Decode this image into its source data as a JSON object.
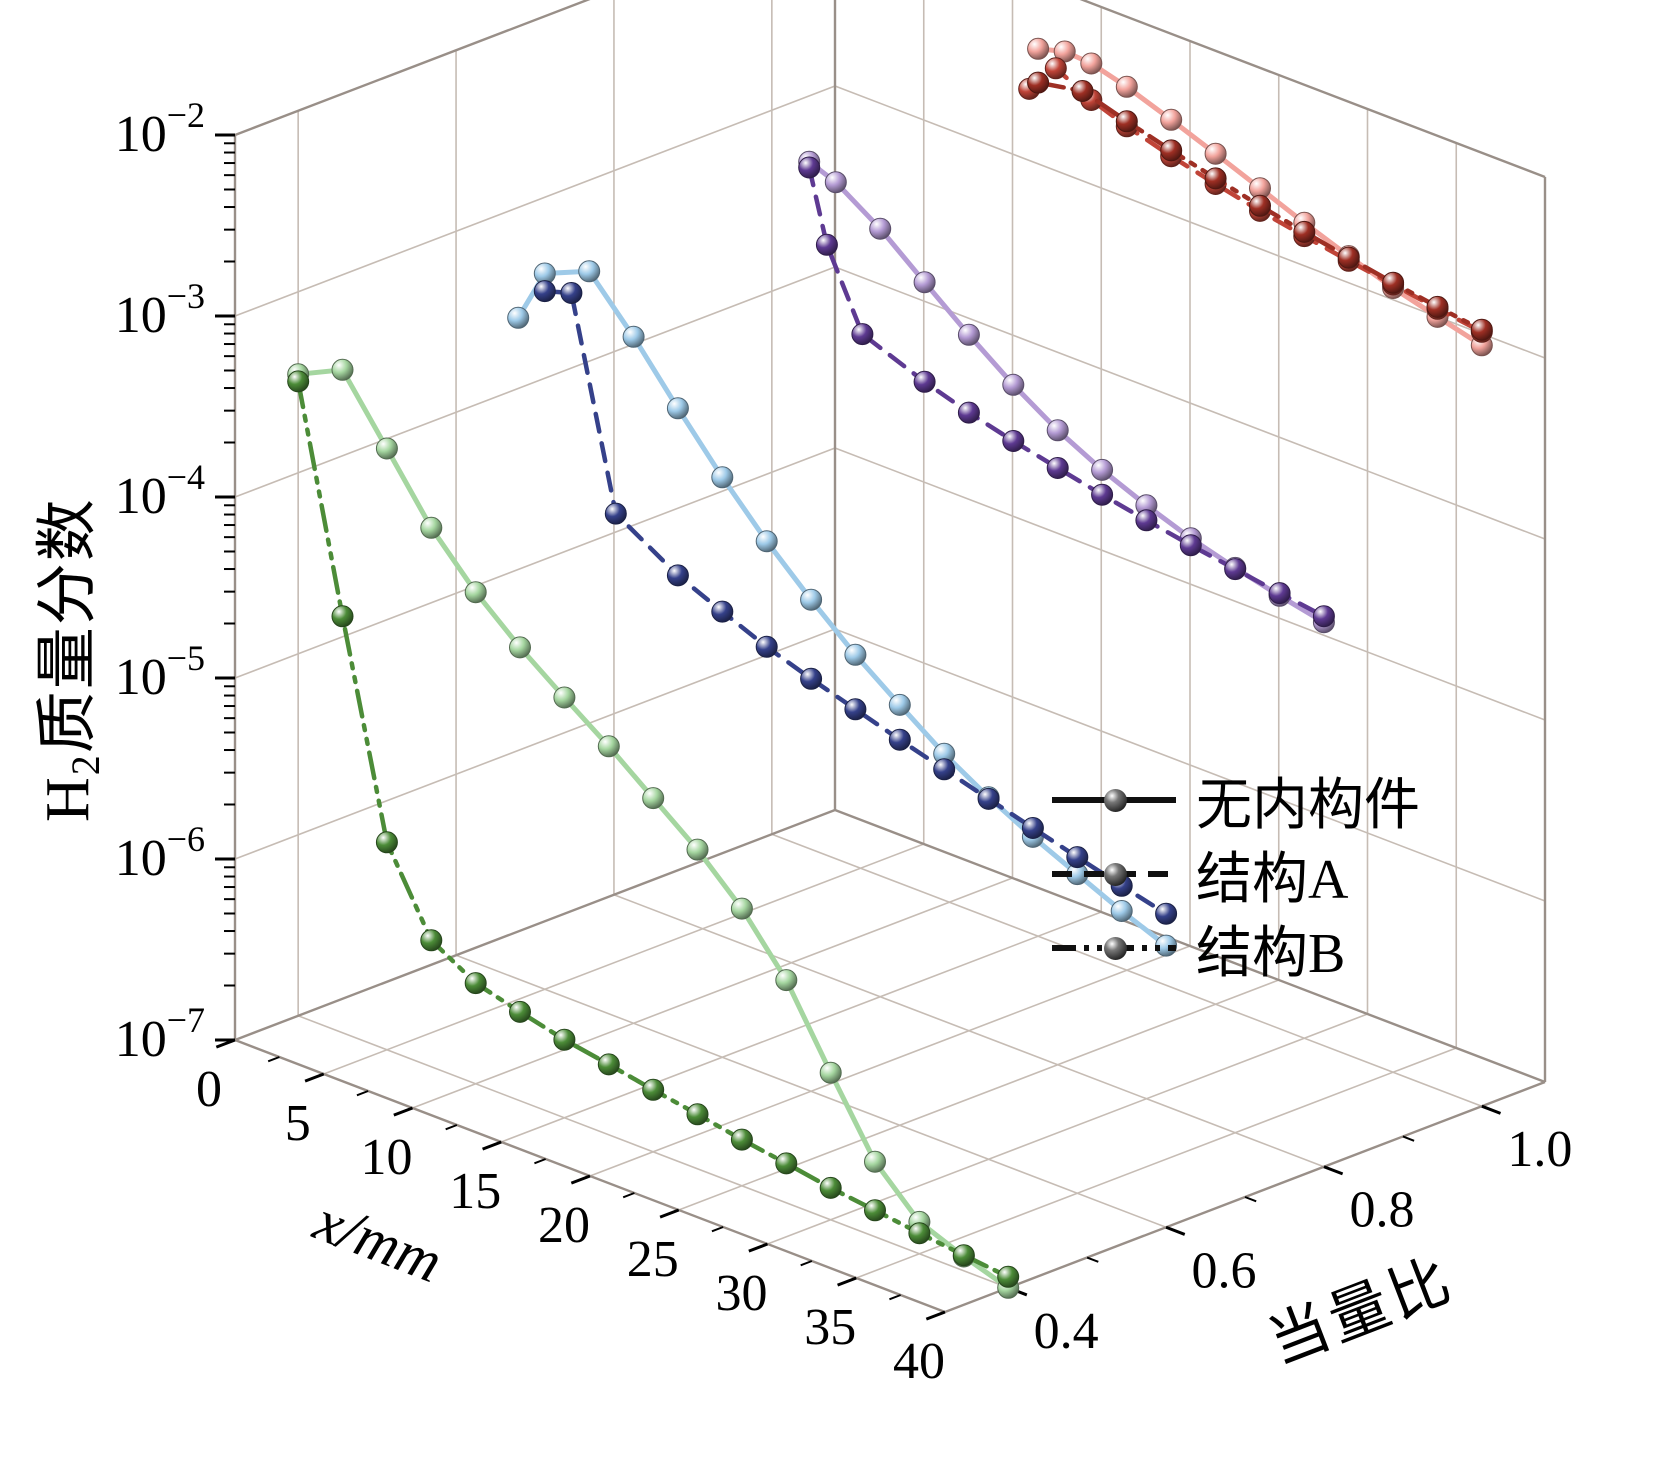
{
  "figure": {
    "background": "#ffffff",
    "zlabel_h": "H",
    "zlabel_sub": "2",
    "zlabel_rest": "质量分数",
    "xlabel": "x/mm",
    "ylabel": "当量比",
    "colors": {
      "grid": "#c6bcb4",
      "frame": "#998f88",
      "text": "#000000"
    }
  },
  "legend": {
    "items": [
      {
        "label": "无内构件",
        "style": "solid"
      },
      {
        "label": "结构A",
        "style": "dashed"
      },
      {
        "label": "结构B",
        "style": "dashdot"
      }
    ]
  },
  "chart_data": {
    "type": "line",
    "projection": "3d",
    "title": "",
    "xlabel": "x/mm",
    "ylabel": "当量比",
    "zlabel": "H2质量分数",
    "grid": true,
    "x_range": [
      0,
      40
    ],
    "y_range": [
      0.32,
      1.08
    ],
    "z_range_exp": [
      -7,
      -2
    ],
    "x_ticks": [
      0,
      5,
      10,
      15,
      20,
      25,
      30,
      35,
      40
    ],
    "x_minor_ticks": [
      2.5,
      7.5,
      12.5,
      17.5,
      22.5,
      27.5,
      32.5,
      37.5
    ],
    "y_ticks": [
      0.4,
      0.6,
      0.8,
      1.0
    ],
    "y_minor_ticks": [
      0.5,
      0.7,
      0.9
    ],
    "z_ticks_exp": [
      -7,
      -6,
      -5,
      -4,
      -3,
      -2
    ],
    "series": [
      {
        "name": "无内构件",
        "equivalence_ratio": 0.4,
        "style": "solid",
        "color": "#a5d6a0",
        "x": [
          0,
          2.5,
          5,
          7.5,
          10,
          12.5,
          15,
          17.5,
          20,
          22.5,
          25,
          27.5,
          30,
          32.5,
          35,
          37.5,
          40
        ],
        "z": [
          0.00035,
          0.00046,
          0.00021,
          9.5e-05,
          5.2e-05,
          3.2e-05,
          2.1e-05,
          1.4e-05,
          9e-06,
          5.8e-06,
          3.4e-06,
          1.7e-06,
          6.5e-07,
          2.6e-07,
          1.5e-07,
          1.2e-07,
          1e-07
        ]
      },
      {
        "name": "结构B",
        "equivalence_ratio": 0.4,
        "style": "dashdot",
        "color": "#4c8c38",
        "x": [
          0,
          2.5,
          5,
          7.5,
          10,
          12.5,
          15,
          17.5,
          20,
          22.5,
          25,
          27.5,
          30,
          32.5,
          35,
          37.5,
          40
        ],
        "z": [
          0.00032,
          2e-05,
          1.4e-06,
          5e-07,
          3.6e-07,
          3.1e-07,
          2.7e-07,
          2.45e-07,
          2.2e-07,
          2e-07,
          1.8e-07,
          1.65e-07,
          1.5e-07,
          1.4e-07,
          1.3e-07,
          1.22e-07,
          1.15e-07
        ]
      },
      {
        "name": "无内构件",
        "equivalence_ratio": 0.6,
        "style": "solid",
        "color": "#9ecae8",
        "x": [
          3.5,
          5,
          7.5,
          10,
          12.5,
          15,
          17.5,
          20,
          22.5,
          25,
          27.5,
          30,
          32.5,
          35,
          37.5,
          40
        ],
        "z": [
          0.00045,
          0.0009,
          0.00115,
          0.00062,
          0.00031,
          0.00016,
          8.8e-05,
          5.2e-05,
          3.2e-05,
          2.1e-05,
          1.4e-05,
          1e-05,
          7.5e-06,
          5.8e-06,
          4.5e-06,
          3.6e-06
        ]
      },
      {
        "name": "结构A",
        "equivalence_ratio": 0.6,
        "style": "dashed",
        "color": "#35418a",
        "x": [
          5,
          6.5,
          9,
          12.5,
          15,
          17.5,
          20,
          22.5,
          25,
          27.5,
          30,
          32.5,
          35,
          37.5,
          40
        ],
        "z": [
          0.00072,
          0.0008,
          6e-05,
          3.7e-05,
          2.9e-05,
          2.3e-05,
          1.9e-05,
          1.6e-05,
          1.35e-05,
          1.15e-05,
          9.8e-06,
          8.4e-06,
          7.2e-06,
          6.2e-06,
          5.4e-06
        ]
      },
      {
        "name": "无内构件",
        "equivalence_ratio": 0.8,
        "style": "solid",
        "color": "#b49bd4",
        "x": [
          11,
          12.5,
          15,
          17.5,
          20,
          22.5,
          25,
          27.5,
          30,
          32.5,
          35,
          37.5,
          40
        ],
        "z": [
          0.0029,
          0.00255,
          0.00175,
          0.0011,
          0.0007,
          0.00046,
          0.00032,
          0.00024,
          0.00019,
          0.000155,
          0.000132,
          0.000115,
          0.000102
        ]
      },
      {
        "name": "结构A",
        "equivalence_ratio": 0.8,
        "style": "dashed",
        "color": "#5e3a92",
        "x": [
          11,
          12,
          14,
          17.5,
          20,
          22.5,
          25,
          27.5,
          30,
          32.5,
          35,
          37.5,
          40
        ],
        "z": [
          0.0027,
          0.0011,
          0.00042,
          0.00031,
          0.00026,
          0.000225,
          0.000198,
          0.000175,
          0.000157,
          0.000142,
          0.00013,
          0.000119,
          0.00011
        ]
      },
      {
        "name": "无内构件",
        "equivalence_ratio": 1.0,
        "style": "solid",
        "color": "#f2a39c",
        "x": [
          15,
          16.5,
          18,
          20,
          22.5,
          25,
          27.5,
          30,
          32.5,
          35,
          37.5,
          40
        ],
        "z": [
          0.008,
          0.0088,
          0.0086,
          0.0076,
          0.0062,
          0.005,
          0.004,
          0.0032,
          0.0026,
          0.00215,
          0.00185,
          0.0016
        ]
      },
      {
        "name": "结构A",
        "equivalence_ratio": 1.0,
        "style": "dashed",
        "color": "#c04438",
        "x": [
          14.5,
          16,
          18,
          20,
          22.5,
          25,
          27.5,
          30,
          32.5,
          35,
          37.5,
          40
        ],
        "z": [
          0.0046,
          0.0068,
          0.0054,
          0.0046,
          0.0039,
          0.0034,
          0.003,
          0.0027,
          0.00245,
          0.00225,
          0.00205,
          0.0019
        ]
      },
      {
        "name": "结构B",
        "equivalence_ratio": 1.0,
        "style": "dashdot",
        "color": "#9e2f24",
        "x": [
          15,
          17.5,
          20,
          22.5,
          25,
          27.5,
          30,
          32.5,
          35,
          37.5,
          40
        ],
        "z": [
          0.0052,
          0.0058,
          0.0049,
          0.0042,
          0.00365,
          0.0032,
          0.00285,
          0.00255,
          0.0023,
          0.0021,
          0.00195
        ]
      }
    ]
  }
}
